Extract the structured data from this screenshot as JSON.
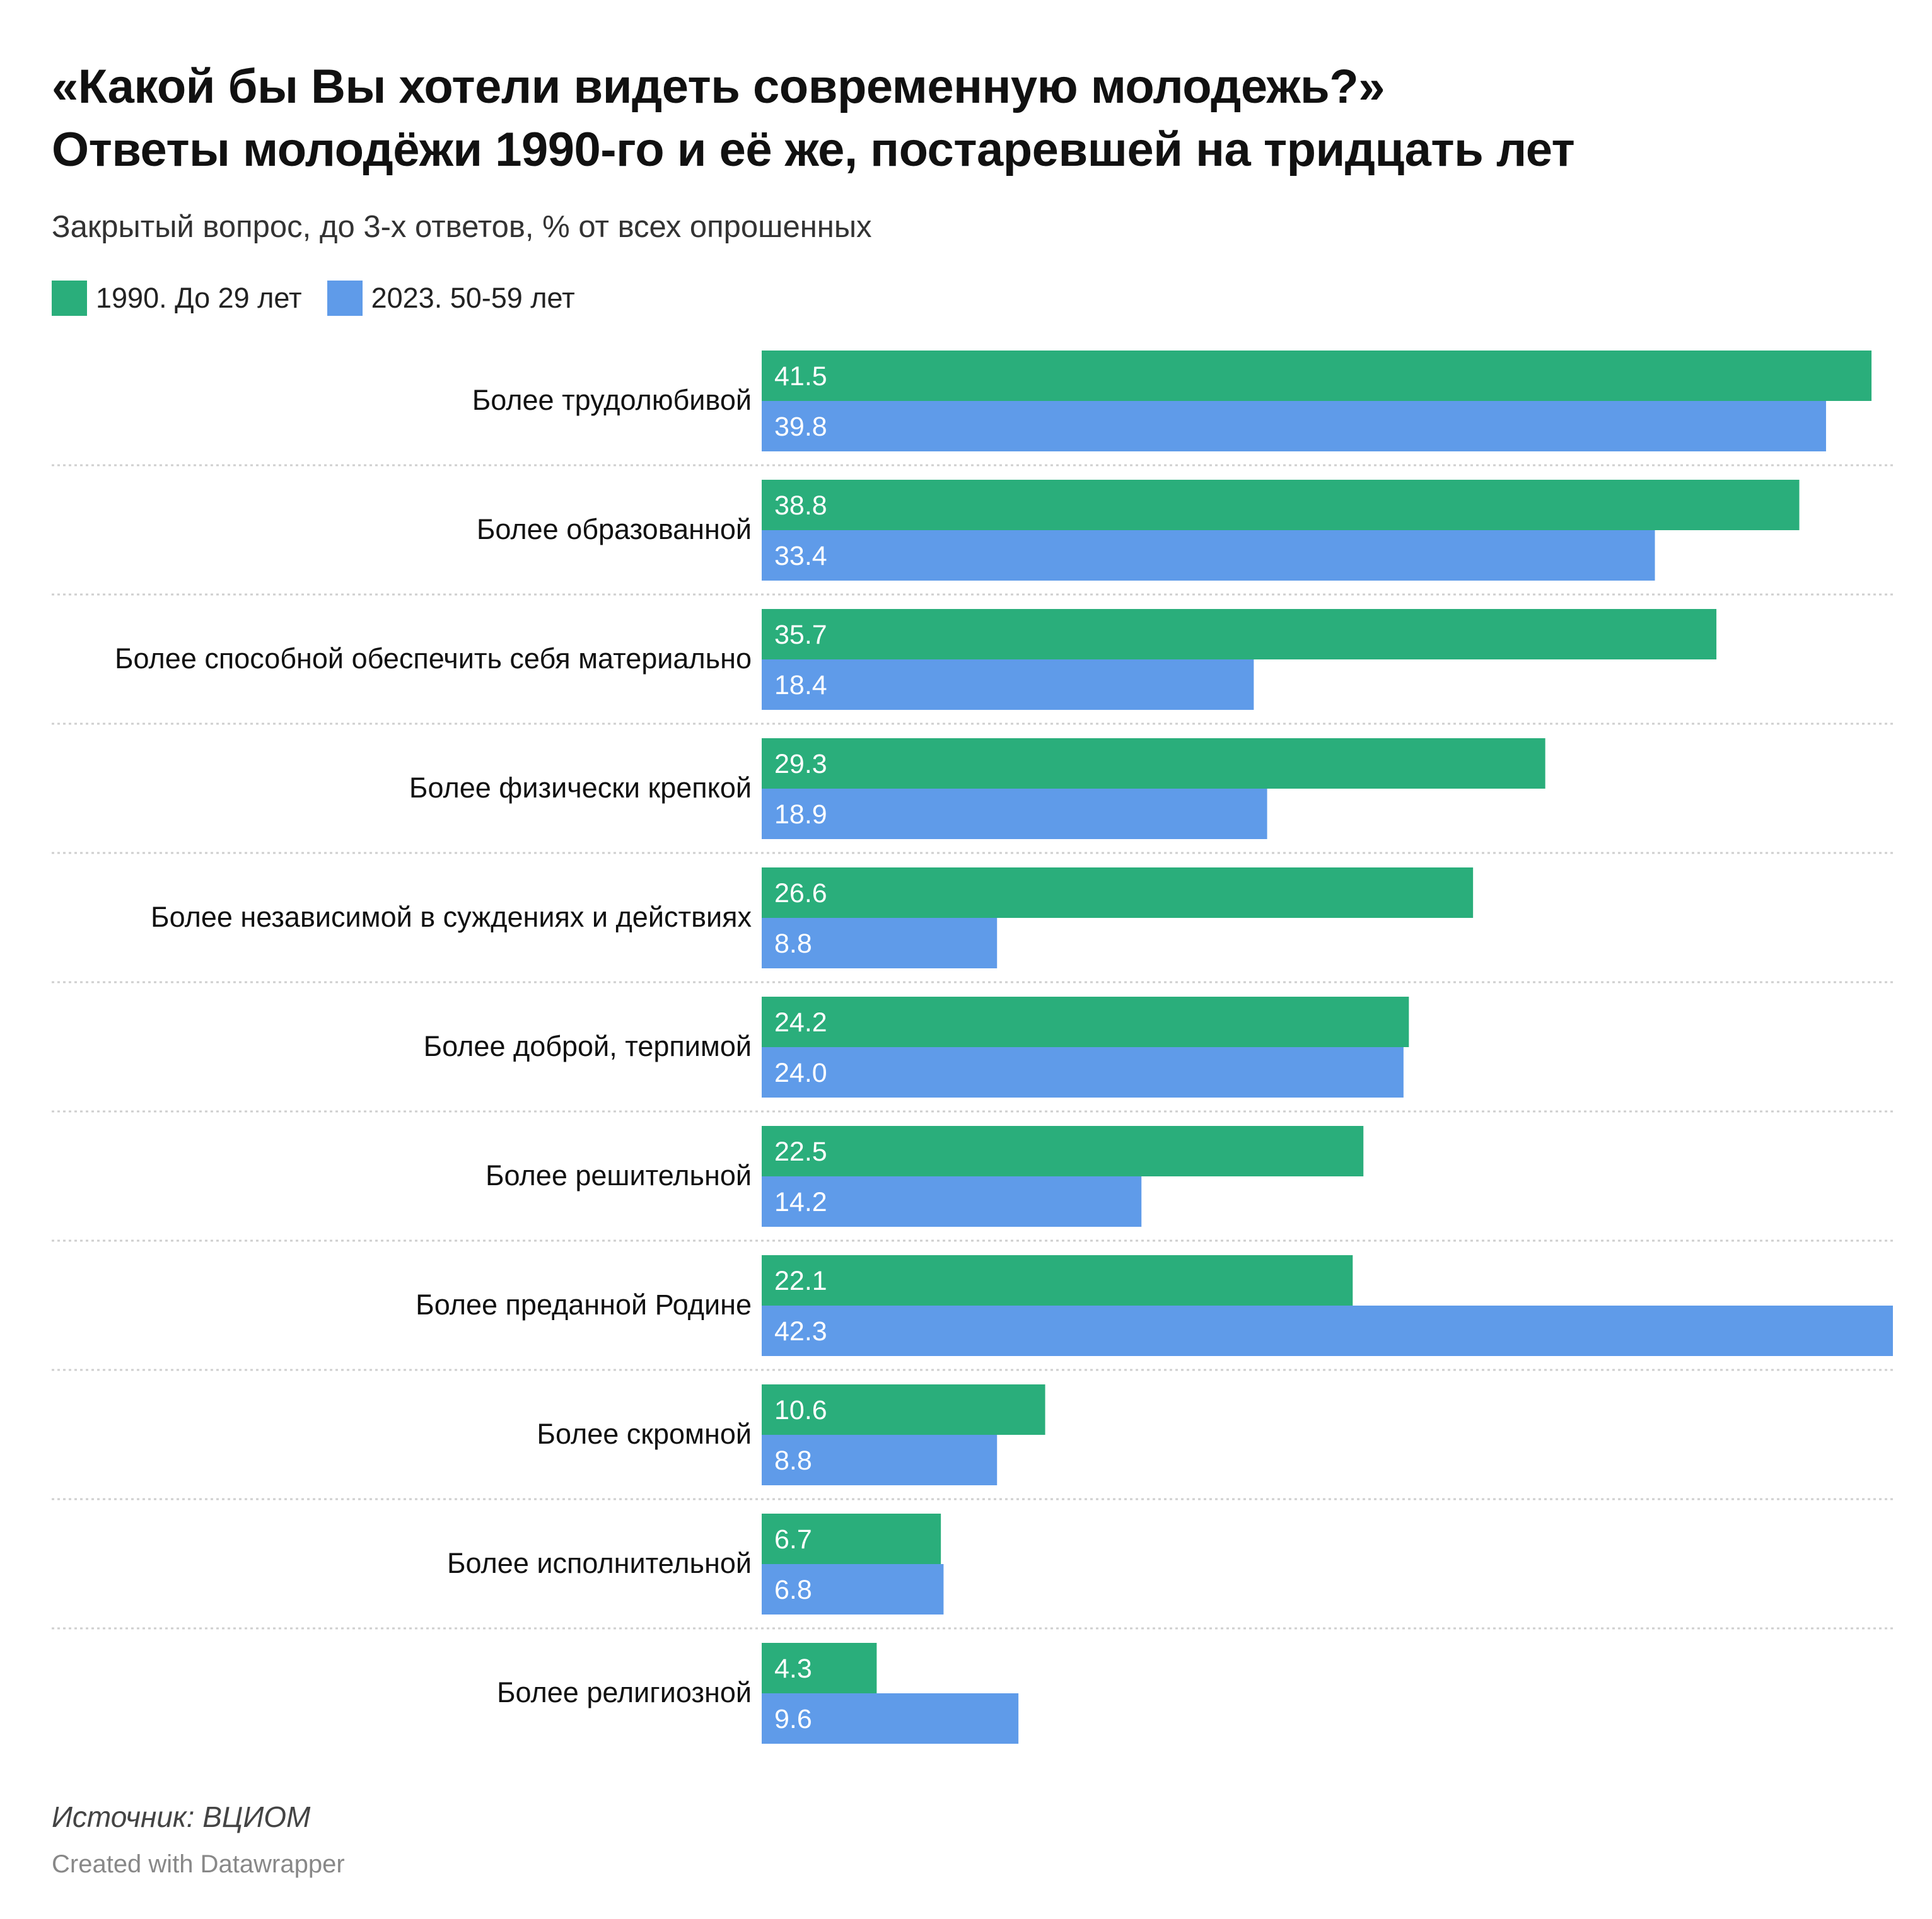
{
  "title_line1": "«Какой бы Вы хотели видеть современную молодежь?»",
  "title_line2": "Ответы молодёжи 1990-го и её же, постаревшей на тридцать лет",
  "subtitle": "Закрытый вопрос, до 3-х ответов, % от всех опрошенных",
  "source": "Источник: ВЦИОМ",
  "credit": "Created with Datawrapper",
  "chart_data": {
    "type": "bar",
    "orientation": "horizontal",
    "title": "«Какой бы Вы хотели видеть современную молодежь?» Ответы молодёжи 1990-го и её же, постаревшей на тридцать лет",
    "subtitle": "Закрытый вопрос, до 3-х ответов, % от всех опрошенных",
    "xlim": [
      0,
      42.3
    ],
    "legend_position": "top-left",
    "grid": false,
    "categories": [
      "Более трудолюбивой",
      "Более образованной",
      "Более способной обеспечить себя материально",
      "Более физически крепкой",
      "Более независимой в суждениях и действиях",
      "Более доброй, терпимой",
      "Более решительной",
      "Более преданной Родине",
      "Более скромной",
      "Более исполнительной",
      "Более религиозной"
    ],
    "series": [
      {
        "name": "1990. До 29 лет",
        "color": "#2aae7b",
        "values": [
          41.5,
          38.8,
          35.7,
          29.3,
          26.6,
          24.2,
          22.5,
          22.1,
          10.6,
          6.7,
          4.3
        ],
        "labels": [
          "41.5",
          "38.8",
          "35.7",
          "29.3",
          "26.6",
          "24.2",
          "22.5",
          "22.1",
          "10.6",
          "6.7",
          "4.3"
        ]
      },
      {
        "name": "2023. 50-59 лет",
        "color": "#5f9be9",
        "values": [
          39.8,
          33.4,
          18.4,
          18.9,
          8.8,
          24.0,
          14.2,
          42.3,
          8.8,
          6.8,
          9.6
        ],
        "labels": [
          "39.8",
          "33.4",
          "18.4",
          "18.9",
          "8.8",
          "24.0",
          "14.2",
          "42.3",
          "8.8",
          "6.8",
          "9.6"
        ]
      }
    ]
  }
}
